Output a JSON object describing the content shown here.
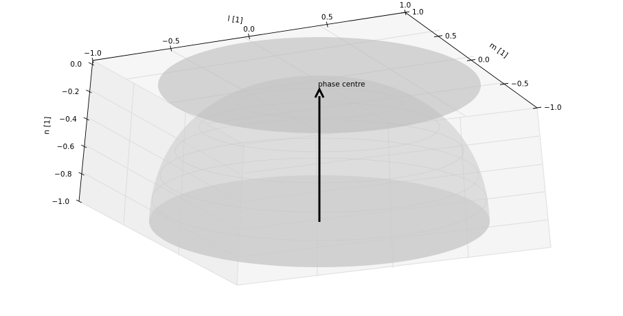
{
  "chart_data": {
    "type": "3d-surface",
    "title": "",
    "annotation": "phase centre",
    "surfaces": [
      {
        "shape": "hemisphere",
        "equation": "n = sqrt(1 - l^2 - m^2) - 1",
        "range_n": [
          -1.0,
          0.0
        ]
      },
      {
        "shape": "disc",
        "at_n": 0.0,
        "radius": 1.0
      },
      {
        "shape": "disc",
        "at_n": -1.0,
        "radius": 1.0
      }
    ],
    "vector": {
      "from": [
        0,
        0,
        -1
      ],
      "to": [
        0,
        0,
        0
      ],
      "label": "phase centre"
    },
    "axes": {
      "l": {
        "label": "l [1]",
        "ticks": [
          "−1.0",
          "−0.5",
          "0.0",
          "0.5",
          "1.0"
        ],
        "range": [
          -1.0,
          1.0
        ]
      },
      "m": {
        "label": "m [1]",
        "ticks": [
          "1.0",
          "0.5",
          "0.0",
          "−0.5",
          "−1.0"
        ],
        "range": [
          -1.0,
          1.0
        ]
      },
      "n": {
        "label": "n [1]",
        "ticks": [
          "0.0",
          "−0.2",
          "−0.4",
          "−0.6",
          "−0.8",
          "−1.0"
        ],
        "range": [
          -1.0,
          0.0
        ]
      }
    },
    "grid": true,
    "colors": {
      "surface": "#c0c0c0",
      "pane": "#f2f2f2",
      "arrow": "#000000"
    }
  }
}
